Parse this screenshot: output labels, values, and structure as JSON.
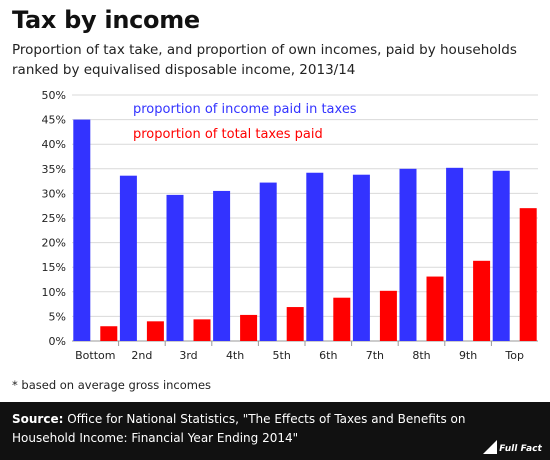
{
  "header": {
    "title": "Tax by income",
    "subtitle": "Proportion of tax take, and proportion of own incomes, paid by households ranked by equivalised disposable income, 2013/14"
  },
  "footnote": "* based on average gross incomes",
  "footer": {
    "source_label": "Source:",
    "source_text": "Office for National Statistics, \"The Effects of Taxes and Benefits on Household Income: Financial Year Ending 2014\"",
    "logo_text": "Full Fact"
  },
  "colors": {
    "income_series": "#3333ff",
    "taxes_series": "#ff0000",
    "grid": "#d9d9d9",
    "footer_bg": "#111111"
  },
  "chart_data": {
    "type": "bar",
    "categories": [
      "Bottom",
      "2nd",
      "3rd",
      "4th",
      "5th",
      "6th",
      "7th",
      "8th",
      "9th",
      "Top"
    ],
    "series": [
      {
        "name": "proportion of income paid in taxes",
        "color": "#3333ff",
        "values": [
          45.0,
          33.6,
          29.7,
          30.5,
          32.2,
          34.2,
          33.8,
          35.0,
          35.2,
          34.6
        ]
      },
      {
        "name": "proportion of total taxes paid",
        "color": "#ff0000",
        "values": [
          3.0,
          4.0,
          4.4,
          5.3,
          6.9,
          8.8,
          10.2,
          13.1,
          16.3,
          27.0
        ]
      }
    ],
    "y_ticks": [
      "0%",
      "5%",
      "10%",
      "15%",
      "20%",
      "25%",
      "30%",
      "35%",
      "40%",
      "45%",
      "50%"
    ],
    "ylim": [
      0,
      50
    ],
    "grid": true,
    "legend": "top-left inside plot",
    "xlabel": "",
    "ylabel": ""
  }
}
